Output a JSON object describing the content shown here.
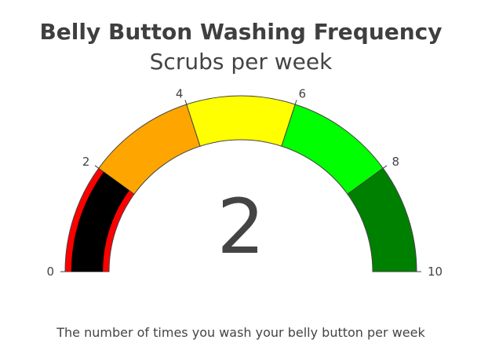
{
  "chart_data": {
    "type": "gauge",
    "title": "Belly Button Washing Frequency",
    "subtitle": "Scrubs per week",
    "value": 2,
    "value_text": "2",
    "range": [
      0,
      10
    ],
    "ticks": [
      {
        "value": 0,
        "label": "0"
      },
      {
        "value": 2,
        "label": "2"
      },
      {
        "value": 4,
        "label": "4"
      },
      {
        "value": 6,
        "label": "6"
      },
      {
        "value": 8,
        "label": "8"
      },
      {
        "value": 10,
        "label": "10"
      }
    ],
    "steps": [
      {
        "range": [
          0,
          2
        ],
        "color": "#ff0000"
      },
      {
        "range": [
          2,
          4
        ],
        "color": "#ffa500"
      },
      {
        "range": [
          4,
          6
        ],
        "color": "#ffff00"
      },
      {
        "range": [
          6,
          8
        ],
        "color": "#00ff00"
      },
      {
        "range": [
          8,
          10
        ],
        "color": "#008000"
      }
    ],
    "bar_color": "#000000",
    "caption": "The number of times you wash your belly button per week"
  }
}
